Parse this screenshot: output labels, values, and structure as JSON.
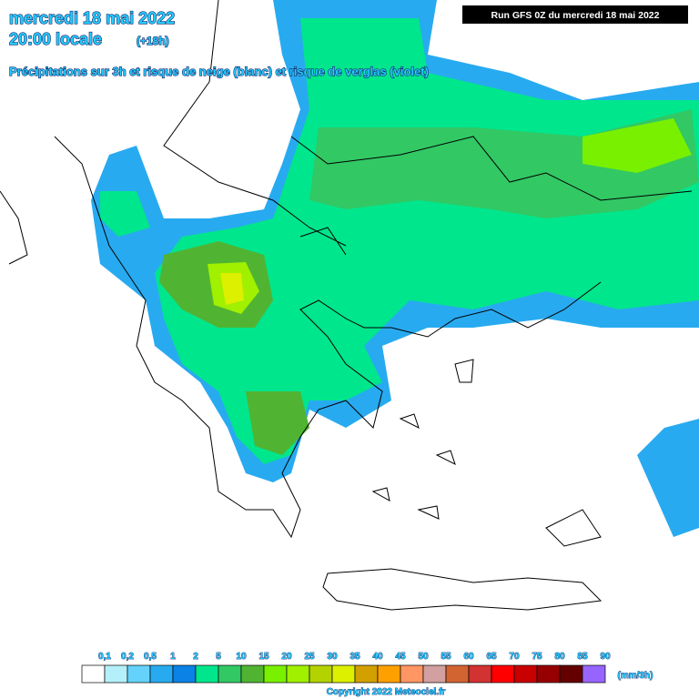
{
  "header": {
    "date": "mercredi 18 mai 2022",
    "time": "20:00 locale",
    "lead": "(+18h)",
    "description": "Précipitations sur 3h et risque de neige (blanc) et risque de verglas (violet)",
    "run": "Run GFS 0Z du mercredi 18 mai 2022"
  },
  "legend": {
    "labels": [
      "0,1",
      "0,2",
      "0,5",
      "1",
      "2",
      "5",
      "10",
      "15",
      "20",
      "25",
      "30",
      "35",
      "40",
      "45",
      "50",
      "55",
      "60",
      "65",
      "70",
      "75",
      "80",
      "85",
      "90"
    ],
    "colors": [
      "#ffffff",
      "#b4f0fa",
      "#64d2fa",
      "#28aaf0",
      "#0a82e6",
      "#00e68c",
      "#32c864",
      "#50b432",
      "#78f000",
      "#a0f000",
      "#b4d200",
      "#dcf000",
      "#d2a000",
      "#ffa000",
      "#ff9664",
      "#d2a0a0",
      "#d26432",
      "#d23232",
      "#ff0000",
      "#c80000",
      "#960000",
      "#640000",
      "#9664ff"
    ],
    "unit": "(mm/3h)"
  },
  "footer": {
    "copyright": "Copyright 2022 Meteociel.fr"
  }
}
